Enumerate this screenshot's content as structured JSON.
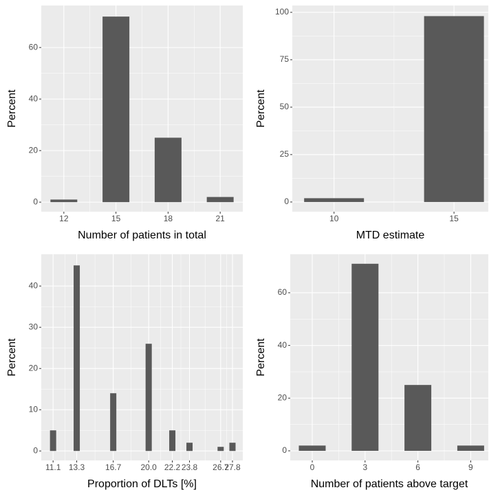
{
  "chart_data": [
    {
      "type": "bar",
      "x_label": "Number of patients in total",
      "y_label": "Percent",
      "x": [
        12,
        15,
        18,
        21
      ],
      "values": [
        1,
        72,
        25,
        2
      ],
      "color": "#595959",
      "xlim": [
        10.7,
        22.3
      ],
      "xticks": [
        12,
        15,
        18,
        21
      ],
      "ylim": [
        -3.7,
        76.3
      ],
      "yticks": [
        0,
        20,
        40,
        60
      ],
      "grid": true
    },
    {
      "type": "bar",
      "x_label": "MTD estimate",
      "y_label": "Percent",
      "x": [
        10,
        15
      ],
      "values": [
        2,
        98
      ],
      "color": "#595959",
      "xlim": [
        8.26,
        16.43
      ],
      "xticks": [
        10,
        15
      ],
      "ylim": [
        -5.1,
        103.6
      ],
      "yticks": [
        0,
        25,
        50,
        75,
        100
      ],
      "grid": true
    },
    {
      "type": "bar",
      "x_label": "Proportion of DLTs [%]",
      "y_label": "Percent",
      "x": [
        11.1,
        13.3,
        16.7,
        20,
        22.2,
        23.8,
        26.7,
        27.8
      ],
      "values": [
        5,
        45,
        14,
        26,
        5,
        2,
        1,
        2
      ],
      "color": "#595959",
      "xlim": [
        10.0,
        28.76
      ],
      "xticks": [
        11.1,
        13.3,
        16.7,
        {
          "value": 20,
          "label": "20.0"
        },
        22.2,
        23.8,
        26.7,
        27.8
      ],
      "ylim": [
        -2.3,
        47.7
      ],
      "yticks": [
        0,
        10,
        20,
        30,
        40
      ],
      "grid": true
    },
    {
      "type": "bar",
      "x_label": "Number of patients above target",
      "y_label": "Percent",
      "x": [
        0,
        3,
        6,
        9
      ],
      "values": [
        2,
        71,
        25,
        2
      ],
      "color": "#595959",
      "xlim": [
        -1.25,
        10.0
      ],
      "xticks": [
        0,
        3,
        6,
        9
      ],
      "ylim": [
        -3.65,
        74.6
      ],
      "yticks": [
        0,
        20,
        40,
        60
      ],
      "grid": true
    }
  ]
}
